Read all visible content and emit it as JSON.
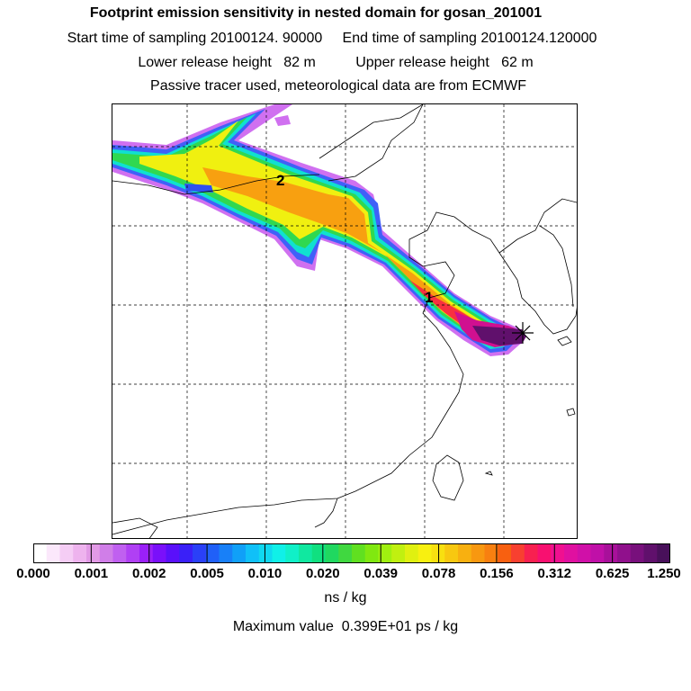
{
  "header": {
    "title": "Footprint emission sensitivity in nested domain for gosan_201001",
    "sampling_line": "Start time of sampling 20100124. 90000     End time of sampling 20100124.120000",
    "release_line": "Lower release height   82 m          Upper release height   62 m",
    "tracer_line": "Passive tracer used, meteorological data are from ECMWF"
  },
  "map": {
    "markers": [
      {
        "label": "1"
      },
      {
        "label": "2"
      }
    ],
    "release_site_icon": "star-cross-icon"
  },
  "colorbar": {
    "tick_labels": [
      "0.000",
      "0.001",
      "0.002",
      "0.005",
      "0.010",
      "0.020",
      "0.039",
      "0.078",
      "0.156",
      "0.312",
      "0.625",
      "1.250"
    ],
    "colors": [
      "#ffffff",
      "#fbe8fb",
      "#f5cdf5",
      "#eeb3ee",
      "#e29ae6",
      "#d07ee8",
      "#c060f0",
      "#b040f4",
      "#9a20f8",
      "#7a10fa",
      "#5a10fa",
      "#3a20f8",
      "#2a40f8",
      "#2060f8",
      "#1880f8",
      "#10a0f8",
      "#10c0f8",
      "#10d8f0",
      "#10f0e8",
      "#10f0c8",
      "#10e8a0",
      "#10e080",
      "#20d860",
      "#40d840",
      "#60e020",
      "#80e810",
      "#a0f010",
      "#c0f010",
      "#e0f010",
      "#f8f010",
      "#f8e010",
      "#f8c810",
      "#f8b010",
      "#f89810",
      "#f88010",
      "#f86010",
      "#f84030",
      "#f82050",
      "#f81070",
      "#f01090",
      "#e010a0",
      "#d010a8",
      "#c010a8",
      "#a8109a",
      "#90108c",
      "#78107c",
      "#60106c",
      "#48105a"
    ],
    "units": "ns / kg"
  },
  "footer": {
    "max_value": "Maximum value  0.399E+01 ps / kg"
  }
}
